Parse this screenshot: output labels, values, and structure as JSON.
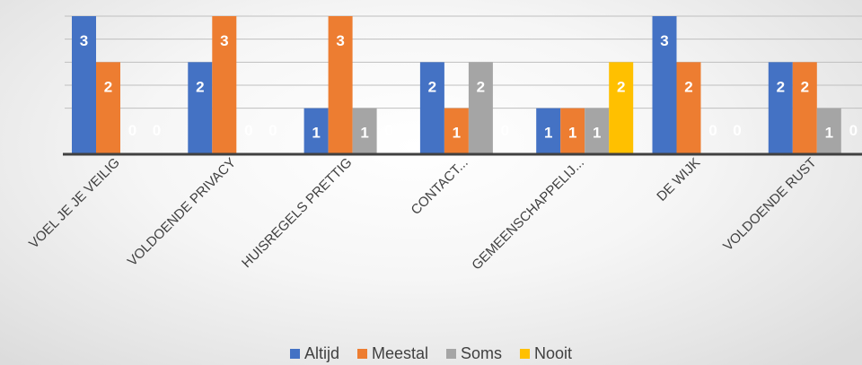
{
  "chart_data": {
    "type": "bar",
    "title": "",
    "xlabel": "",
    "ylabel": "",
    "ylim": [
      0,
      3
    ],
    "grid": true,
    "legend_position": "bottom",
    "categories": [
      "VOEL JE JE VEILIG",
      "VOLDOENDE PRIVACY",
      "HUISREGELS PRETTIG",
      "CONTACT...",
      "GEMEENSCHAPPELIJ...",
      "DE WIJK",
      "VOLDOENDE RUST"
    ],
    "series": [
      {
        "name": "Altijd",
        "color": "#4472C4",
        "values": [
          3,
          2,
          1,
          2,
          1,
          3,
          2
        ]
      },
      {
        "name": "Meestal",
        "color": "#ED7D31",
        "values": [
          2,
          3,
          3,
          1,
          1,
          2,
          2
        ]
      },
      {
        "name": "Soms",
        "color": "#A5A5A5",
        "values": [
          0,
          0,
          1,
          2,
          1,
          0,
          1
        ]
      },
      {
        "name": "Nooit",
        "color": "#FFC000",
        "values": [
          0,
          0,
          0,
          0,
          2,
          0,
          0
        ]
      }
    ]
  }
}
